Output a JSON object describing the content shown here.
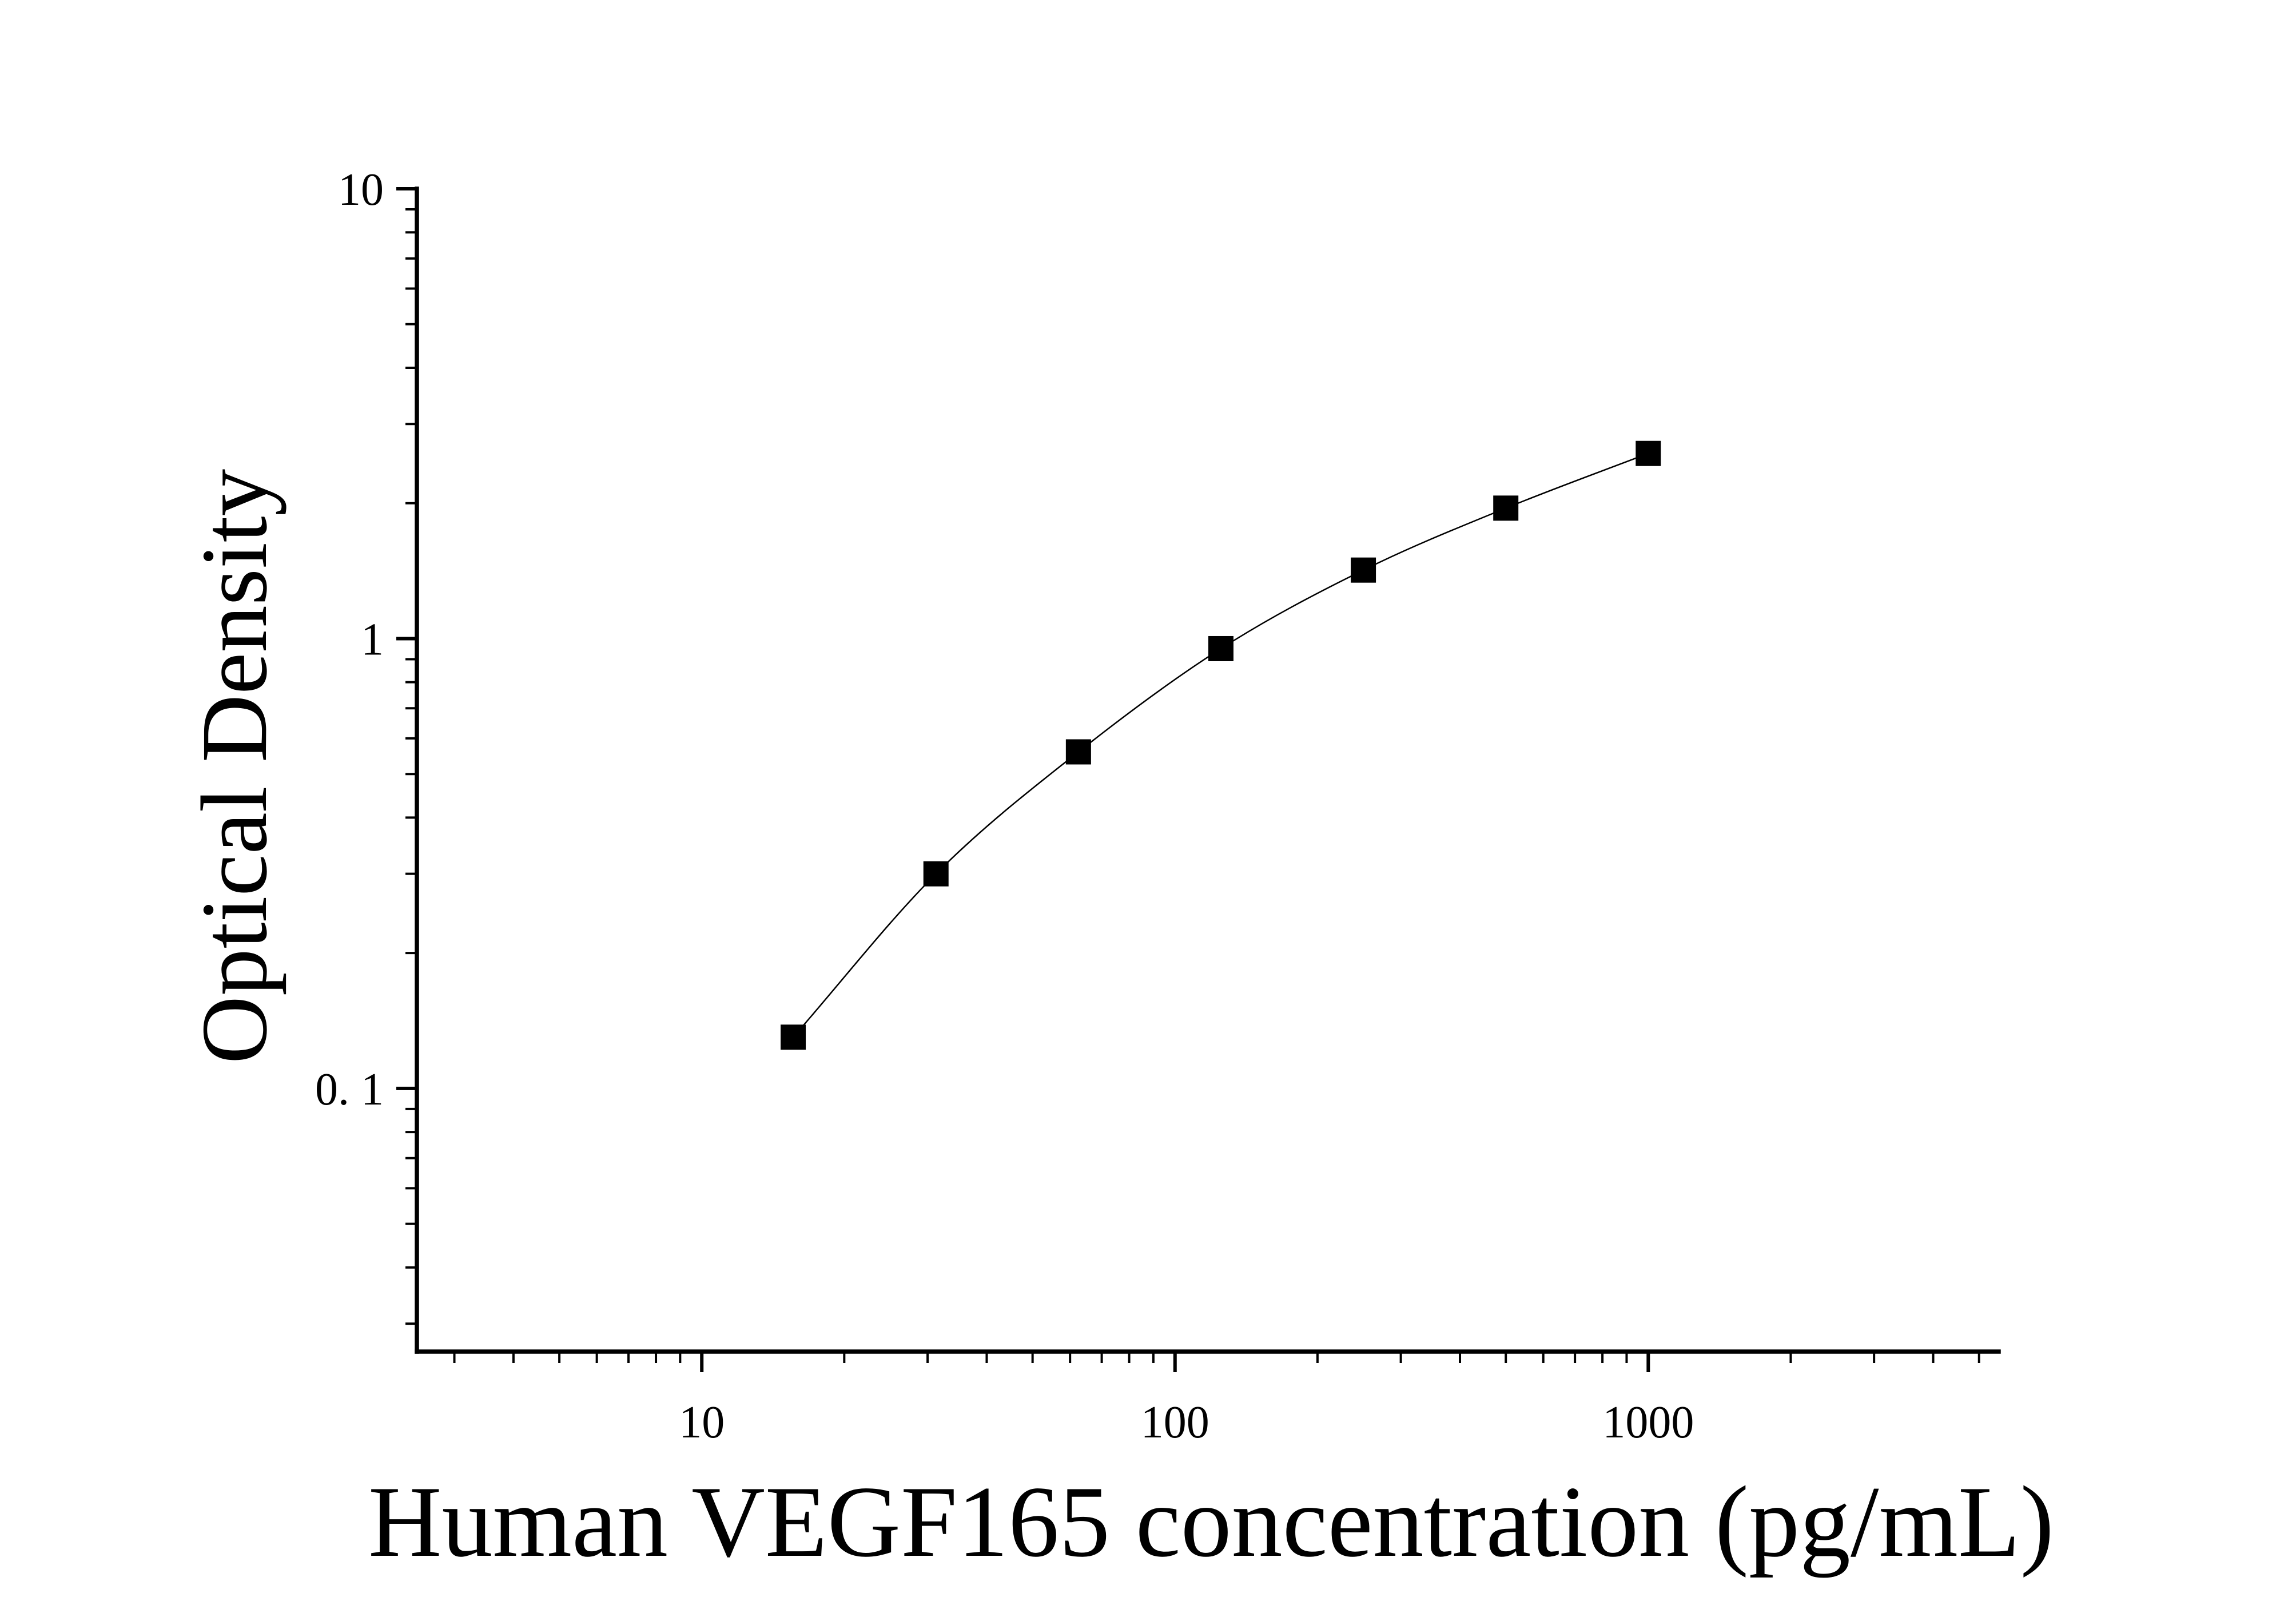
{
  "chart_data": {
    "type": "scatter",
    "xlabel": "Human VEGF165 concentration (pg/mL)",
    "ylabel": "Optical Density",
    "x_scale": "log",
    "y_scale": "log",
    "xlim": [
      2.5,
      5500
    ],
    "ylim": [
      0.026,
      10
    ],
    "x_ticks": [
      10,
      100,
      1000
    ],
    "x_tick_labels": [
      "10",
      "100",
      "1000"
    ],
    "y_ticks": [
      0.1,
      1,
      10
    ],
    "y_tick_labels": [
      "0. 1",
      "1",
      "10"
    ],
    "grid": false,
    "legend": "none",
    "marker": "square",
    "marker_color": "#000000",
    "series": [
      {
        "x": [
          15.6,
          31.25,
          62.5,
          125,
          250,
          500,
          1000
        ],
        "y": [
          0.13,
          0.3,
          0.56,
          0.95,
          1.42,
          1.95,
          2.58
        ]
      }
    ],
    "fit_curve": true
  }
}
